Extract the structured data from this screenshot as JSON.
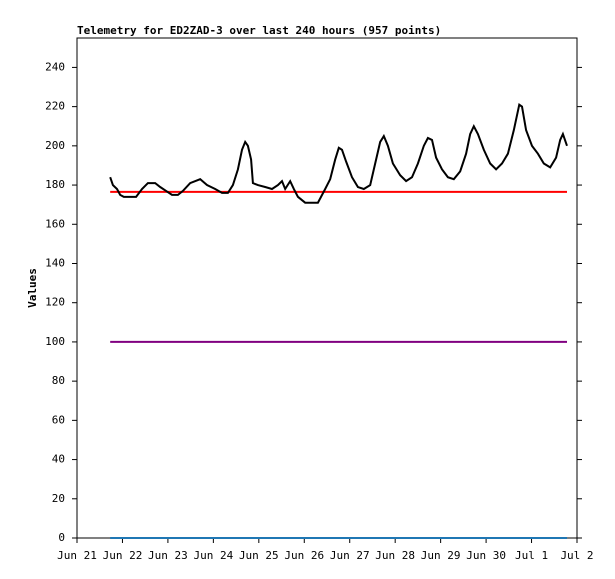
{
  "chart_data": {
    "type": "line",
    "title": "Telemetry for ED2ZAD-3 over last 240 hours (957 points)",
    "y_label": "Values",
    "xlim": [
      0,
      11
    ],
    "xticks": [
      {
        "value": 0,
        "label": "Jun 21"
      },
      {
        "value": 1,
        "label": "Jun 22"
      },
      {
        "value": 2,
        "label": "Jun 23"
      },
      {
        "value": 3,
        "label": "Jun 24"
      },
      {
        "value": 4,
        "label": "Jun 25"
      },
      {
        "value": 5,
        "label": "Jun 26"
      },
      {
        "value": 6,
        "label": "Jun 27"
      },
      {
        "value": 7,
        "label": "Jun 28"
      },
      {
        "value": 8,
        "label": "Jun 29"
      },
      {
        "value": 9,
        "label": "Jun 30"
      },
      {
        "value": 10,
        "label": "Jul 1"
      },
      {
        "value": 11,
        "label": "Jul 2"
      }
    ],
    "ylim": [
      0,
      255
    ],
    "yticks": [
      0,
      20,
      40,
      60,
      80,
      100,
      120,
      140,
      160,
      180,
      200,
      220,
      240
    ],
    "series": [
      {
        "color": "#ff0000",
        "x": [
          0.73,
          10.78
        ],
        "values": [
          176.5,
          176.5
        ]
      },
      {
        "color": "#800080",
        "x": [
          0.73,
          10.78
        ],
        "values": [
          100,
          100
        ]
      },
      {
        "color": "#1f77b4",
        "x": [
          0.73,
          10.78
        ],
        "values": [
          0,
          0
        ]
      },
      {
        "color": "#000000",
        "x": [
          0.73,
          0.79,
          0.88,
          0.95,
          1.03,
          1.17,
          1.3,
          1.43,
          1.56,
          1.72,
          1.83,
          1.96,
          2.09,
          2.22,
          2.33,
          2.49,
          2.71,
          2.86,
          3.04,
          3.19,
          3.32,
          3.43,
          3.54,
          3.63,
          3.7,
          3.76,
          3.83,
          3.87,
          3.98,
          4.14,
          4.29,
          4.42,
          4.51,
          4.58,
          4.69,
          4.77,
          4.86,
          5.02,
          5.3,
          5.46,
          5.57,
          5.68,
          5.76,
          5.83,
          5.92,
          6.05,
          6.18,
          6.31,
          6.45,
          6.56,
          6.67,
          6.75,
          6.84,
          6.95,
          7.11,
          7.24,
          7.37,
          7.5,
          7.63,
          7.72,
          7.81,
          7.9,
          8.03,
          8.16,
          8.29,
          8.43,
          8.56,
          8.65,
          8.73,
          8.82,
          8.95,
          9.09,
          9.22,
          9.35,
          9.48,
          9.61,
          9.73,
          9.79,
          9.88,
          10.01,
          10.14,
          10.27,
          10.41,
          10.54,
          10.63,
          10.69,
          10.78
        ],
        "values": [
          184,
          180,
          178,
          175,
          174,
          174,
          174,
          178,
          181,
          181,
          179,
          177,
          175,
          175,
          177,
          181,
          183,
          180,
          178,
          176,
          176,
          180,
          188,
          198,
          202,
          200,
          193,
          181,
          180,
          179,
          178,
          180,
          182,
          178,
          182,
          178,
          174,
          171,
          171,
          178,
          183,
          193,
          199,
          198,
          192,
          184,
          179,
          178,
          180,
          191,
          202,
          205,
          200,
          191,
          185,
          182,
          184,
          191,
          200,
          204,
          203,
          194,
          188,
          184,
          183,
          187,
          196,
          206,
          210,
          206,
          198,
          191,
          188,
          191,
          196,
          208,
          221,
          220,
          208,
          200,
          196,
          191,
          189,
          194,
          203,
          206,
          200
        ]
      }
    ]
  }
}
